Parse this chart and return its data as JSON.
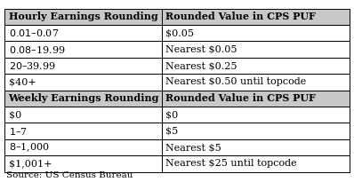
{
  "col1_header": "Hourly Earnings Rounding",
  "col2_header": "Rounded Value in CPS PUF",
  "hourly_rows": [
    [
      "$0.01–$0.07",
      "$0.05"
    ],
    [
      "$0.08–$19.99",
      "Nearest $0.05"
    ],
    [
      "$20–$39.99",
      "Nearest $0.25"
    ],
    [
      "$40+",
      "Nearest $0.50 until topcode"
    ]
  ],
  "weekly_col1_header": "Weekly Earnings Rounding",
  "weekly_col2_header": "Rounded Value in CPS PUF",
  "weekly_rows": [
    [
      "$0",
      "$0"
    ],
    [
      "$1–$7",
      "$5"
    ],
    [
      "$8–$1,000",
      "Nearest $5"
    ],
    [
      "$1,001+",
      "Nearest $25 until topcode"
    ]
  ],
  "source": "Source: US Census Bureau",
  "bg_color": "#ffffff",
  "header_bg": "#c8c8c8",
  "border_color": "#000000",
  "text_color": "#000000",
  "font_size": 8.0,
  "header_font_size": 8.0,
  "col_split": 0.455
}
